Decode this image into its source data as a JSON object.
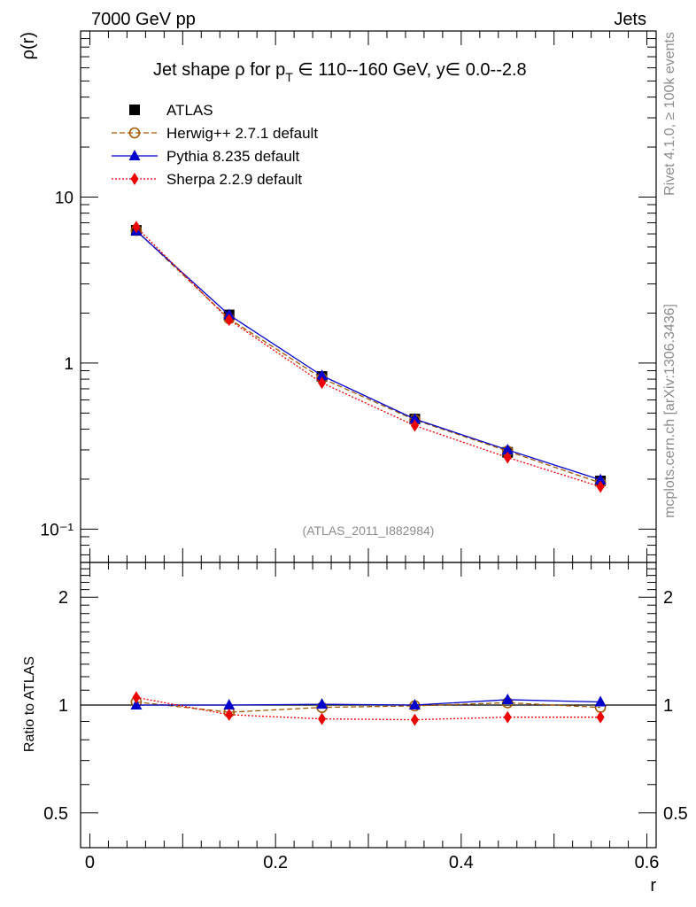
{
  "header": {
    "left": "7000 GeV pp",
    "right": "Jets"
  },
  "side_labels": {
    "rivet": "Rivet 4.1.0, ≥ 100k events",
    "mcplots": "mcplots.cern.ch [arXiv:1306.3436]"
  },
  "chart_data": [
    {
      "type": "line",
      "title": "Jet shape ρ for p_T ∈ 110--160 GeV, y∈ 0.0--2.8",
      "title_parts": {
        "main": "Jet shape ρ for p",
        "sub": "T",
        "rest": " ∈ 110--160 GeV, y∈ 0.0--2.8"
      },
      "ylabel": "ρ(r)",
      "xlabel": "r",
      "yscale": "log",
      "xlim": [
        -0.01,
        0.61
      ],
      "ylim": [
        0.063,
        100
      ],
      "y_ticks": [
        {
          "value": 10,
          "label": "10"
        },
        {
          "value": 1,
          "label": "1"
        },
        {
          "value": 0.1,
          "label": "10⁻¹"
        }
      ],
      "watermark": "(ATLAS_2011_I882984)",
      "x": [
        0.05,
        0.15,
        0.25,
        0.35,
        0.45,
        0.55
      ],
      "series": [
        {
          "name": "ATLAS",
          "values": [
            6.3,
            1.95,
            0.83,
            0.46,
            0.29,
            0.195
          ],
          "color": "#000000",
          "marker": "square",
          "line": "none"
        },
        {
          "name": "Herwig++ 2.7.1 default",
          "values": [
            6.3,
            1.85,
            0.81,
            0.455,
            0.295,
            0.19
          ],
          "color": "#a05a00",
          "marker": "circle-open",
          "line": "dashed"
        },
        {
          "name": "Pythia 8.235 default",
          "values": [
            6.25,
            1.95,
            0.84,
            0.46,
            0.3,
            0.198
          ],
          "color": "#0000cc",
          "marker": "triangle",
          "line": "solid"
        },
        {
          "name": "Sherpa 2.2.9 default",
          "values": [
            6.6,
            1.82,
            0.76,
            0.42,
            0.27,
            0.18
          ],
          "color": "#ee0000",
          "marker": "diamond",
          "line": "dotted"
        }
      ],
      "legend_position": "top-left"
    },
    {
      "type": "line",
      "ylabel": "Ratio to ATLAS",
      "xlabel": "r",
      "yscale": "log",
      "xlim": [
        -0.01,
        0.61
      ],
      "ylim": [
        0.4,
        2.5
      ],
      "x_ticks": [
        {
          "value": 0,
          "label": "0"
        },
        {
          "value": 0.2,
          "label": "0.2"
        },
        {
          "value": 0.4,
          "label": "0.4"
        },
        {
          "value": 0.6,
          "label": "0.6"
        }
      ],
      "y_ticks": [
        {
          "value": 2,
          "label": "2"
        },
        {
          "value": 1,
          "label": "1"
        },
        {
          "value": 0.5,
          "label": "0.5"
        }
      ],
      "x": [
        0.05,
        0.15,
        0.25,
        0.35,
        0.45,
        0.55
      ],
      "series": [
        {
          "name": "Herwig++ 2.7.1 default",
          "values": [
            1.02,
            0.955,
            0.985,
            0.995,
            1.015,
            0.985
          ],
          "color": "#a05a00",
          "marker": "circle-open",
          "line": "dashed"
        },
        {
          "name": "Pythia 8.235 default",
          "values": [
            1.0,
            1.0,
            1.005,
            1.0,
            1.035,
            1.02
          ],
          "color": "#0000cc",
          "marker": "triangle",
          "line": "solid"
        },
        {
          "name": "Sherpa 2.2.9 default",
          "values": [
            1.05,
            0.94,
            0.915,
            0.91,
            0.925,
            0.925
          ],
          "color": "#ee0000",
          "marker": "diamond",
          "line": "dotted"
        }
      ]
    }
  ]
}
